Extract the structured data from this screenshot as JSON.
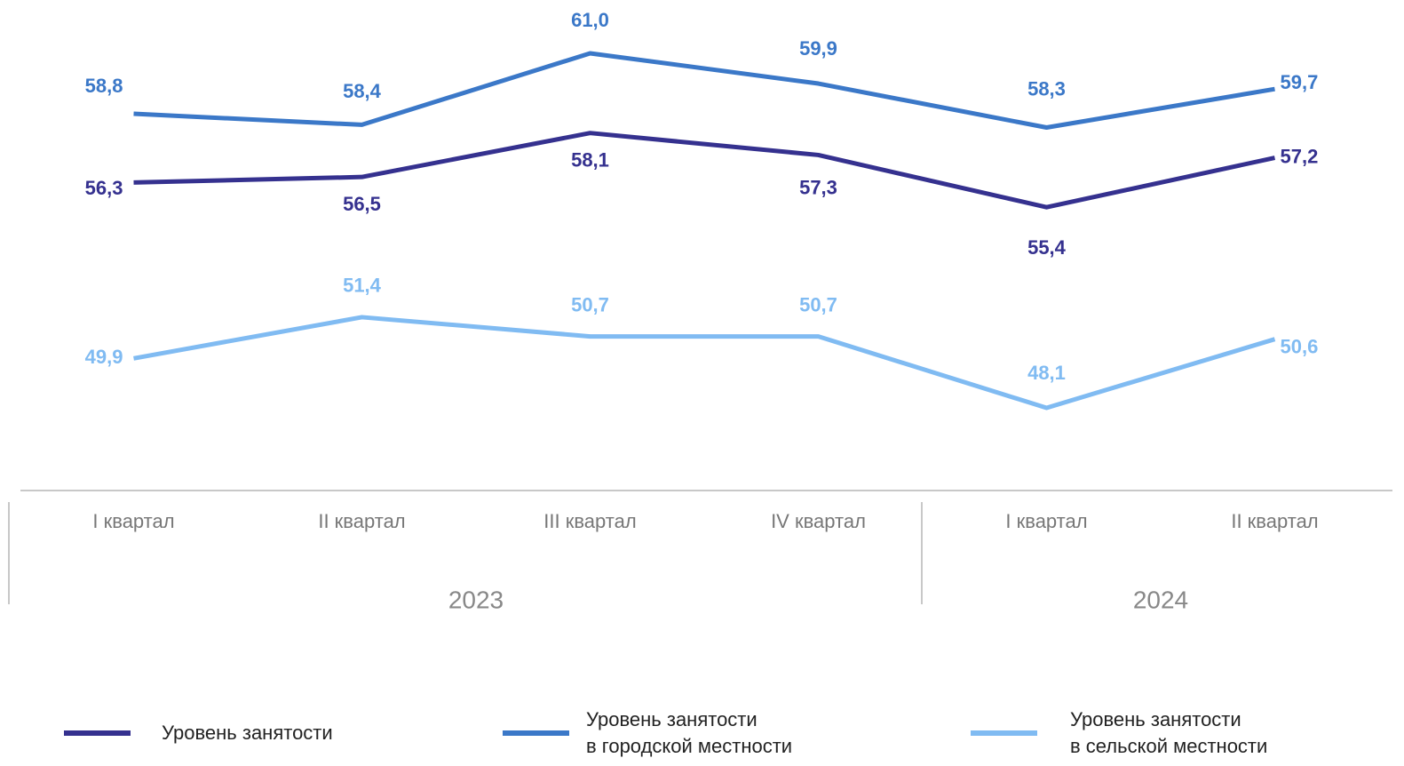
{
  "chart_data": {
    "type": "line",
    "categories": [
      "I квартал",
      "II квартал",
      "III квартал",
      "IV квартал",
      "I квартал",
      "II квартал"
    ],
    "groups": [
      {
        "label": "2023",
        "count": 4
      },
      {
        "label": "2024",
        "count": 2
      }
    ],
    "series": [
      {
        "name": "Уровень занятости",
        "color": "#35318f",
        "values": [
          56.3,
          56.5,
          58.1,
          57.3,
          55.4,
          57.2
        ],
        "value_labels": [
          "56,3",
          "56,5",
          "58,1",
          "57,3",
          "55,4",
          "57,2"
        ]
      },
      {
        "name": "Уровень занятости\nв городской местности",
        "color": "#3b78c8",
        "values": [
          58.8,
          58.4,
          61.0,
          59.9,
          58.3,
          59.7
        ],
        "value_labels": [
          "58,8",
          "58,4",
          "61,0",
          "59,9",
          "58,3",
          "59,7"
        ]
      },
      {
        "name": "Уровень занятости\nв сельской местности",
        "color": "#80bbf2",
        "values": [
          49.9,
          51.4,
          50.7,
          50.7,
          48.1,
          50.6
        ],
        "value_labels": [
          "49,9",
          "51,4",
          "50,7",
          "50,7",
          "48,1",
          "50,6"
        ]
      }
    ]
  }
}
